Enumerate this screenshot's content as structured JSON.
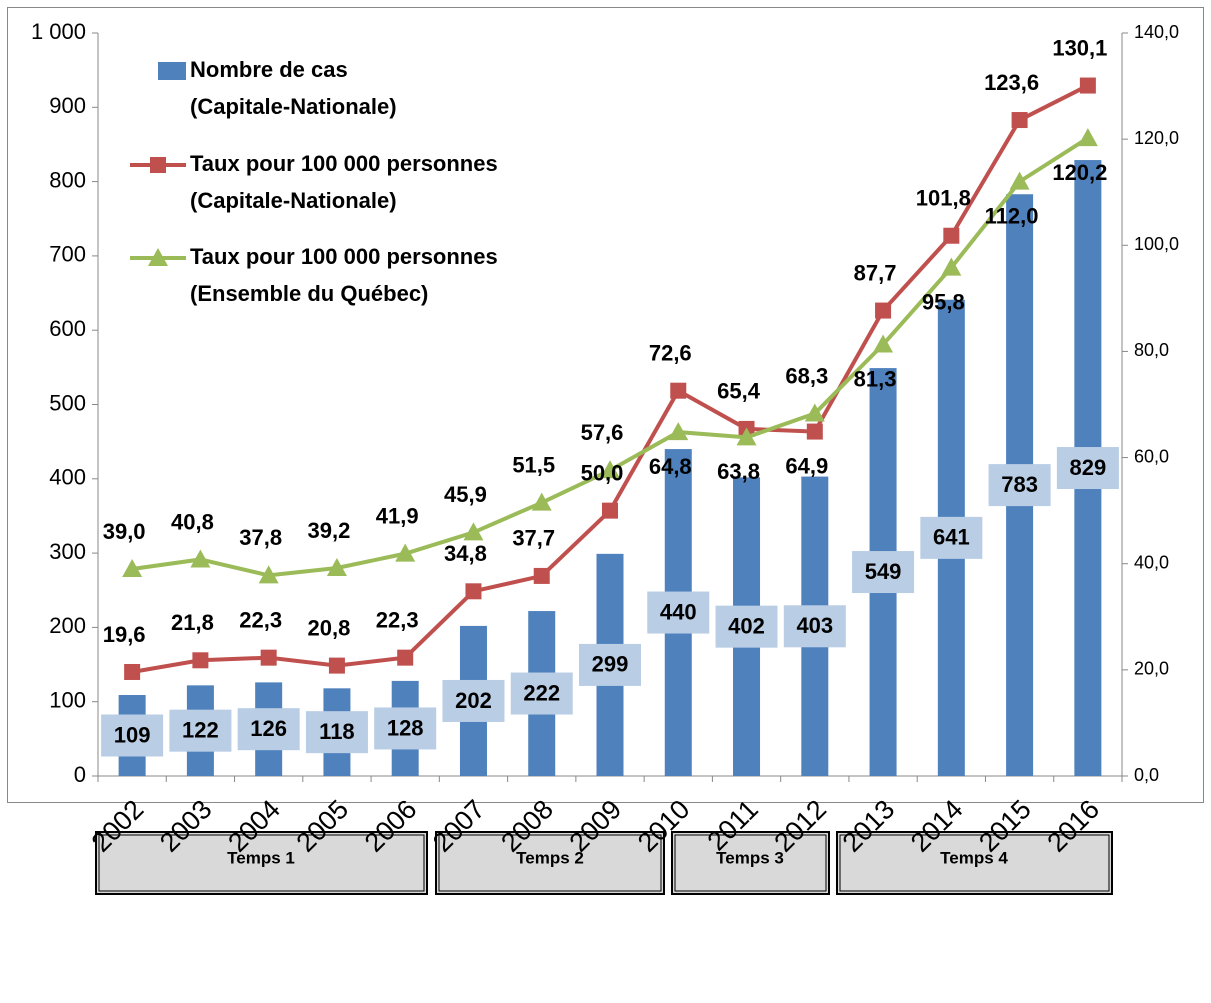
{
  "chart_data": {
    "type": "bar_line",
    "categories": [
      "2002",
      "2003",
      "2004",
      "2005",
      "2006",
      "2007",
      "2008",
      "2009",
      "2010",
      "2011",
      "2012",
      "2013",
      "2014",
      "2015",
      "2016"
    ],
    "series": [
      {
        "name": "Nombre de cas (Capitale-Nationale)",
        "type": "bar",
        "color": "#4f81bd",
        "values": [
          109,
          122,
          126,
          118,
          128,
          202,
          222,
          299,
          440,
          402,
          403,
          549,
          641,
          783,
          829
        ]
      },
      {
        "name": "Taux pour 100 000 personnes (Capitale-Nationale)",
        "type": "line",
        "axis": "y2",
        "color": "#c0504d",
        "marker": "square",
        "values": [
          19.6,
          21.8,
          22.3,
          20.8,
          22.3,
          34.8,
          37.7,
          50.0,
          72.6,
          65.4,
          64.9,
          87.7,
          101.8,
          123.6,
          130.1
        ],
        "value_labels": [
          "19,6",
          "21,8",
          "22,3",
          "20,8",
          "22,3",
          "34,8",
          "37,7",
          "50,0",
          "72,6",
          "65,4",
          "64,9",
          "87,7",
          "101,8",
          "123,6",
          "130,1"
        ]
      },
      {
        "name": "Taux pour 100 000 personnes (Ensemble du Québec)",
        "type": "line",
        "axis": "y2",
        "color": "#9bbb59",
        "marker": "triangle",
        "values": [
          39.0,
          40.8,
          37.8,
          39.2,
          41.9,
          45.9,
          51.5,
          57.6,
          64.8,
          63.8,
          68.3,
          81.3,
          95.8,
          112.0,
          120.2
        ],
        "value_labels": [
          "39,0",
          "40,8",
          "37,8",
          "39,2",
          "41,9",
          "45,9",
          "51,5",
          "57,6",
          "64,8",
          "63,8",
          "68,3",
          "81,3",
          "95,8",
          "112,0",
          "120,2"
        ]
      }
    ],
    "ylim": [
      0,
      1000
    ],
    "yticks": [
      0,
      100,
      200,
      300,
      400,
      500,
      600,
      700,
      800,
      900,
      {
        "value": 1000,
        "label": "1 000"
      }
    ],
    "y2lim": [
      0,
      140
    ],
    "y2ticks": [
      {
        "value": 0,
        "label": "0,0"
      },
      {
        "value": 20,
        "label": "20,0"
      },
      {
        "value": 40,
        "label": "40,0"
      },
      {
        "value": 60,
        "label": "60,0"
      },
      {
        "value": 80,
        "label": "80,0"
      },
      {
        "value": 100,
        "label": "100,0"
      },
      {
        "value": 120,
        "label": "120,0"
      },
      {
        "value": 140,
        "label": "140,0"
      }
    ],
    "legend": "upper left"
  },
  "timeline": [
    "Temps 1",
    "Temps 2",
    "Temps 3",
    "Temps 4"
  ]
}
